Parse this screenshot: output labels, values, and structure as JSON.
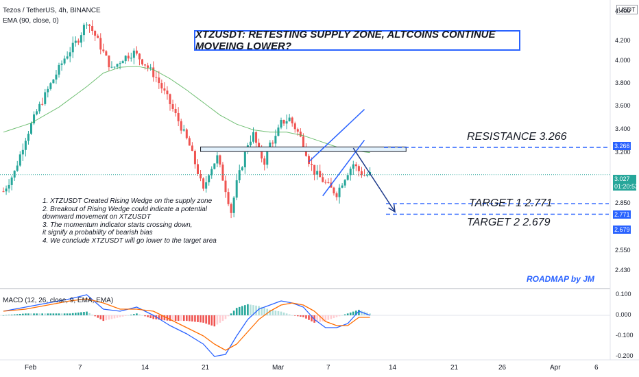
{
  "header": {
    "symbol_line": "Tezos / TetherUS, 4h, BINANCE",
    "ema_line": "EMA (90, close, 0)",
    "macd_line": "MACD (12, 26, close, 9, EMA, EMA)",
    "currency": "USDT"
  },
  "title": "XTZUSDT: RETESTING SUPPLY ZONE, ALTCOINS CONTINUE MOVEING LOWER?",
  "annotations": {
    "resistance": "RESISTANCE 3.266",
    "target1": "TARGET 1  2.771",
    "target2": "TARGET 2  2.679",
    "roadmap": "ROADMAP by JM",
    "notes": [
      "1. XTZUSDT Created Rising Wedge on  the supply zone",
      "2. Breakout of Rising Wedge could indicate a potential",
      "downward movement on XTZUSDT",
      "3. The momentum indicator starts crossing down,",
      "it signify a probability of bearish bias",
      "4. We conclude XTZUSDT will go lower to the target area"
    ]
  },
  "price_tags": {
    "resistance": "3.266",
    "current": "3.027",
    "countdown": "01:20:53",
    "target1": "2.771",
    "target2": "2.679"
  },
  "colors": {
    "up": "#26a69a",
    "down": "#ef5350",
    "ema": "#4caf50",
    "annotation": "#2962ff",
    "macd": "#2962ff",
    "signal": "#ff6d00"
  },
  "chart_data": {
    "type": "candlestick",
    "price_axis": {
      "ticks": [
        "4.400",
        "4.200",
        "4.000",
        "3.800",
        "3.600",
        "3.400",
        "3.200",
        "2.850",
        "2.550",
        "2.430"
      ],
      "ylim": [
        2.35,
        4.47
      ]
    },
    "macd_axis": {
      "ticks": [
        "0.100",
        "0.000",
        "-0.100",
        "-0.200"
      ],
      "ylim": [
        -0.22,
        0.12
      ]
    },
    "x_axis": {
      "ticks": [
        "Feb",
        "7",
        "14",
        "21",
        "Mar",
        "7",
        "14",
        "21",
        "26",
        "Apr",
        "6"
      ]
    },
    "close_path": [
      [
        0,
        2.88
      ],
      [
        4,
        3.05
      ],
      [
        8,
        3.35
      ],
      [
        12,
        3.58
      ],
      [
        17,
        3.82
      ],
      [
        22,
        4.05
      ],
      [
        27,
        4.22
      ],
      [
        30,
        4.38
      ],
      [
        33,
        4.25
      ],
      [
        36,
        4.1
      ],
      [
        39,
        3.95
      ],
      [
        43,
        4.05
      ],
      [
        47,
        4.1
      ],
      [
        51,
        4.0
      ],
      [
        55,
        3.88
      ],
      [
        59,
        3.7
      ],
      [
        63,
        3.5
      ],
      [
        67,
        3.28
      ],
      [
        70,
        3.05
      ],
      [
        72,
        2.88
      ],
      [
        74,
        3.05
      ],
      [
        77,
        3.18
      ],
      [
        80,
        2.9
      ],
      [
        82,
        2.7
      ],
      [
        84,
        2.95
      ],
      [
        86,
        3.12
      ],
      [
        88,
        3.3
      ],
      [
        90,
        3.38
      ],
      [
        92,
        3.22
      ],
      [
        94,
        3.14
      ],
      [
        96,
        3.3
      ],
      [
        98,
        3.35
      ],
      [
        100,
        3.48
      ],
      [
        103,
        3.52
      ],
      [
        106,
        3.4
      ],
      [
        108,
        3.3
      ],
      [
        110,
        3.15
      ],
      [
        112,
        3.05
      ],
      [
        114,
        3.0
      ],
      [
        116,
        2.95
      ],
      [
        118,
        2.9
      ],
      [
        120,
        2.86
      ],
      [
        122,
        2.96
      ],
      [
        124,
        3.05
      ],
      [
        126,
        3.12
      ],
      [
        128,
        3.06
      ],
      [
        130,
        3.02
      ],
      [
        132,
        3.03
      ]
    ],
    "ema_path": [
      [
        0,
        3.4
      ],
      [
        10,
        3.48
      ],
      [
        20,
        3.62
      ],
      [
        30,
        3.8
      ],
      [
        36,
        3.92
      ],
      [
        42,
        3.97
      ],
      [
        48,
        3.98
      ],
      [
        54,
        3.95
      ],
      [
        60,
        3.87
      ],
      [
        66,
        3.77
      ],
      [
        72,
        3.66
      ],
      [
        78,
        3.55
      ],
      [
        84,
        3.47
      ],
      [
        90,
        3.42
      ],
      [
        96,
        3.4
      ],
      [
        102,
        3.4
      ],
      [
        108,
        3.37
      ],
      [
        114,
        3.32
      ],
      [
        120,
        3.27
      ],
      [
        126,
        3.24
      ],
      [
        132,
        3.22
      ]
    ],
    "levels": [
      {
        "name": "resistance",
        "value": 3.266
      },
      {
        "name": "target1",
        "value": 2.771
      },
      {
        "name": "target2",
        "value": 2.679
      },
      {
        "name": "current",
        "value": 3.027
      }
    ],
    "supply_zone": [
      3.23,
      3.27
    ],
    "wedge": {
      "lower": [
        [
          115,
          2.84
        ],
        [
          130,
          3.33
        ]
      ],
      "upper": [
        [
          110,
          3.14
        ],
        [
          130,
          3.6
        ]
      ]
    },
    "projection": [
      [
        126,
        3.26
      ],
      [
        141,
        2.7
      ]
    ],
    "macd_path": [
      [
        0,
        0.02
      ],
      [
        8,
        0.04
      ],
      [
        16,
        0.06
      ],
      [
        24,
        0.08
      ],
      [
        30,
        0.1
      ],
      [
        36,
        0.03
      ],
      [
        42,
        0.02
      ],
      [
        48,
        0.04
      ],
      [
        54,
        0.0
      ],
      [
        60,
        -0.05
      ],
      [
        66,
        -0.09
      ],
      [
        72,
        -0.14
      ],
      [
        76,
        -0.2
      ],
      [
        80,
        -0.19
      ],
      [
        84,
        -0.1
      ],
      [
        88,
        -0.02
      ],
      [
        92,
        0.03
      ],
      [
        96,
        0.05
      ],
      [
        100,
        0.07
      ],
      [
        104,
        0.06
      ],
      [
        108,
        0.04
      ],
      [
        112,
        -0.02
      ],
      [
        116,
        -0.06
      ],
      [
        120,
        -0.06
      ],
      [
        124,
        -0.04
      ],
      [
        128,
        0.02
      ],
      [
        132,
        0.0
      ]
    ],
    "signal_path": [
      [
        0,
        0.02
      ],
      [
        8,
        0.03
      ],
      [
        16,
        0.05
      ],
      [
        24,
        0.07
      ],
      [
        30,
        0.08
      ],
      [
        36,
        0.06
      ],
      [
        42,
        0.03
      ],
      [
        48,
        0.03
      ],
      [
        54,
        0.02
      ],
      [
        60,
        -0.02
      ],
      [
        66,
        -0.06
      ],
      [
        72,
        -0.1
      ],
      [
        76,
        -0.14
      ],
      [
        80,
        -0.17
      ],
      [
        84,
        -0.14
      ],
      [
        88,
        -0.08
      ],
      [
        92,
        -0.02
      ],
      [
        96,
        0.02
      ],
      [
        100,
        0.05
      ],
      [
        104,
        0.06
      ],
      [
        108,
        0.05
      ],
      [
        112,
        0.02
      ],
      [
        116,
        -0.03
      ],
      [
        120,
        -0.05
      ],
      [
        124,
        -0.05
      ],
      [
        128,
        -0.01
      ],
      [
        132,
        -0.01
      ]
    ]
  }
}
